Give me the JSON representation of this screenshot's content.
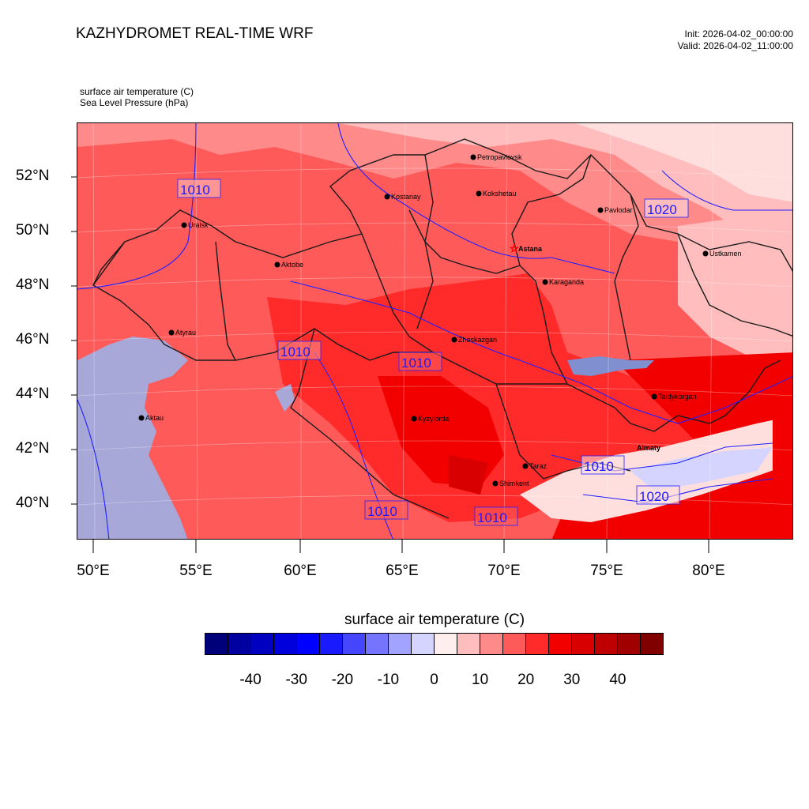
{
  "header": {
    "title": "KAZHYDROMET REAL-TIME WRF",
    "init": "Init: 2026-04-02_00:00:00",
    "valid": "Valid: 2026-04-02_11:00:00"
  },
  "subtitle": {
    "line1": "surface air temperature   (C)",
    "line2": "Sea Level Pressure   (hPa)"
  },
  "axes": {
    "lat_labels": [
      "52°N",
      "50°N",
      "48°N",
      "46°N",
      "44°N",
      "42°N",
      "40°N"
    ],
    "lon_labels": [
      "50°E",
      "55°E",
      "60°E",
      "65°E",
      "70°E",
      "75°E",
      "80°E"
    ]
  },
  "cities": [
    {
      "name": "Petropavlovsk",
      "marker": "dot"
    },
    {
      "name": "Kostanay",
      "marker": "dot"
    },
    {
      "name": "Kokshetau",
      "marker": "dot"
    },
    {
      "name": "Pavlodar",
      "marker": "dot"
    },
    {
      "name": "Uralsk",
      "marker": "dot"
    },
    {
      "name": "Astana",
      "marker": "star"
    },
    {
      "name": "Ustkamen",
      "marker": "dot"
    },
    {
      "name": "Aktobe",
      "marker": "dot"
    },
    {
      "name": "Karaganda",
      "marker": "dot"
    },
    {
      "name": "Atyrau",
      "marker": "dot"
    },
    {
      "name": "Zheskazgan",
      "marker": "dot"
    },
    {
      "name": "Taldykorgan",
      "marker": "dot"
    },
    {
      "name": "Aktau",
      "marker": "dot"
    },
    {
      "name": "Kyzylorda",
      "marker": "dot"
    },
    {
      "name": "Almaty",
      "marker": "none"
    },
    {
      "name": "Taraz",
      "marker": "dot"
    },
    {
      "name": "Shimkent",
      "marker": "dot"
    }
  ],
  "pressure_labels": [
    "1010",
    "1020",
    "1010",
    "1010",
    "1010",
    "1010",
    "1010",
    "1020"
  ],
  "colorbar": {
    "title": "surface air temperature  (C)",
    "colors": [
      "#00007a",
      "#0000a0",
      "#0000c0",
      "#0000dd",
      "#0000ff",
      "#1a1aff",
      "#4646ff",
      "#7474ff",
      "#a2a2ff",
      "#d4d4ff",
      "#ffeeee",
      "#ffbdbd",
      "#ff8a8a",
      "#ff5a5a",
      "#ff2a2a",
      "#f20000",
      "#d80000",
      "#bd0000",
      "#a00000",
      "#800000"
    ],
    "labels": [
      "-40",
      "-30",
      "-20",
      "-10",
      "0",
      "10",
      "20",
      "30",
      "40"
    ]
  }
}
